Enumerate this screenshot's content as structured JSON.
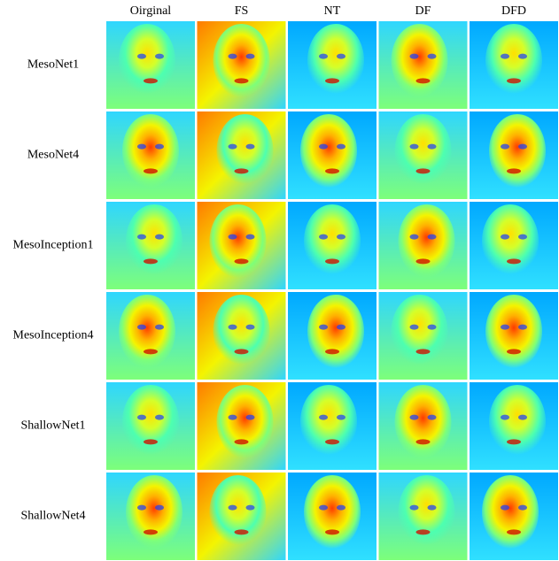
{
  "columns": [
    "Oirginal",
    "FS",
    "NT",
    "DF",
    "DFD"
  ],
  "rows": [
    "MesoNet1",
    "MesoNet4",
    "MesoInception1",
    "MesoInception4",
    "ShallowNet1",
    "ShallowNet4"
  ]
}
